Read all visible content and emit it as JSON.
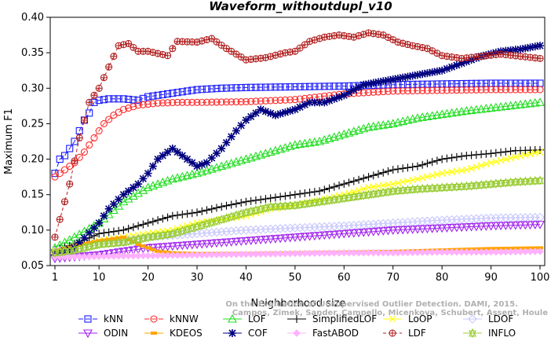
{
  "chart_data": {
    "type": "line",
    "title": "Waveform_withoutdupl_v10",
    "xlabel": "Neighborhood size",
    "ylabel": "Maximum F1",
    "xlim": [
      1,
      100
    ],
    "ylim": [
      0.05,
      0.4
    ],
    "xticks": [
      "1",
      "10",
      "20",
      "30",
      "40",
      "50",
      "60",
      "70",
      "80",
      "90",
      "100"
    ],
    "yticks": [
      "0.05",
      "0.10",
      "0.15",
      "0.20",
      "0.25",
      "0.30",
      "0.35",
      "0.40"
    ],
    "watermark": [
      "Campos, Zimek, Sander, Campello, Micenkova, Schubert, Assent, Houle",
      "On the Evaluation of Unsupervised Outlier Detection. DAMI, 2015."
    ],
    "series": [
      {
        "name": "kNN",
        "color": "#1a1aff",
        "marker": "square",
        "dash": "6,3",
        "points": [
          [
            1,
            0.18
          ],
          [
            2,
            0.2
          ],
          [
            3,
            0.205
          ],
          [
            4,
            0.215
          ],
          [
            5,
            0.225
          ],
          [
            6,
            0.24
          ],
          [
            7,
            0.255
          ],
          [
            8,
            0.265
          ],
          [
            9,
            0.28
          ],
          [
            10,
            0.283
          ],
          [
            12,
            0.285
          ],
          [
            15,
            0.285
          ],
          [
            18,
            0.283
          ],
          [
            20,
            0.288
          ],
          [
            25,
            0.293
          ],
          [
            30,
            0.298
          ],
          [
            35,
            0.3
          ],
          [
            40,
            0.301
          ],
          [
            50,
            0.302
          ],
          [
            60,
            0.303
          ],
          [
            70,
            0.305
          ],
          [
            80,
            0.306
          ],
          [
            90,
            0.307
          ],
          [
            100,
            0.307
          ]
        ]
      },
      {
        "name": "kNNW",
        "color": "#ff2a2a",
        "marker": "circle",
        "dash": "6,3",
        "points": [
          [
            1,
            0.175
          ],
          [
            3,
            0.185
          ],
          [
            5,
            0.195
          ],
          [
            7,
            0.21
          ],
          [
            9,
            0.23
          ],
          [
            11,
            0.25
          ],
          [
            13,
            0.262
          ],
          [
            15,
            0.27
          ],
          [
            18,
            0.276
          ],
          [
            22,
            0.279
          ],
          [
            26,
            0.28
          ],
          [
            30,
            0.28
          ],
          [
            40,
            0.281
          ],
          [
            50,
            0.284
          ],
          [
            60,
            0.292
          ],
          [
            70,
            0.296
          ],
          [
            80,
            0.297
          ],
          [
            90,
            0.298
          ],
          [
            100,
            0.298
          ]
        ]
      },
      {
        "name": "LOF",
        "color": "#22dd22",
        "marker": "triangle",
        "dash": "",
        "points": [
          [
            1,
            0.075
          ],
          [
            5,
            0.09
          ],
          [
            10,
            0.11
          ],
          [
            15,
            0.14
          ],
          [
            20,
            0.16
          ],
          [
            25,
            0.172
          ],
          [
            30,
            0.18
          ],
          [
            35,
            0.19
          ],
          [
            40,
            0.2
          ],
          [
            45,
            0.21
          ],
          [
            50,
            0.22
          ],
          [
            55,
            0.225
          ],
          [
            60,
            0.235
          ],
          [
            65,
            0.245
          ],
          [
            70,
            0.25
          ],
          [
            75,
            0.258
          ],
          [
            80,
            0.263
          ],
          [
            85,
            0.268
          ],
          [
            90,
            0.272
          ],
          [
            95,
            0.276
          ],
          [
            100,
            0.28
          ]
        ]
      },
      {
        "name": "SimplifiedLOF",
        "color": "#000000",
        "marker": "plus",
        "dash": "",
        "points": [
          [
            1,
            0.072
          ],
          [
            5,
            0.08
          ],
          [
            10,
            0.095
          ],
          [
            15,
            0.1
          ],
          [
            20,
            0.11
          ],
          [
            25,
            0.12
          ],
          [
            30,
            0.125
          ],
          [
            35,
            0.133
          ],
          [
            40,
            0.14
          ],
          [
            45,
            0.145
          ],
          [
            50,
            0.15
          ],
          [
            55,
            0.155
          ],
          [
            60,
            0.165
          ],
          [
            65,
            0.175
          ],
          [
            70,
            0.185
          ],
          [
            75,
            0.19
          ],
          [
            80,
            0.2
          ],
          [
            85,
            0.205
          ],
          [
            90,
            0.208
          ],
          [
            95,
            0.212
          ],
          [
            100,
            0.213
          ]
        ]
      },
      {
        "name": "LoOP",
        "color": "#ffff00",
        "marker": "x",
        "dash": "",
        "points": [
          [
            1,
            0.07
          ],
          [
            5,
            0.075
          ],
          [
            10,
            0.085
          ],
          [
            15,
            0.09
          ],
          [
            20,
            0.095
          ],
          [
            25,
            0.1
          ],
          [
            30,
            0.11
          ],
          [
            35,
            0.115
          ],
          [
            40,
            0.12
          ],
          [
            45,
            0.13
          ],
          [
            50,
            0.135
          ],
          [
            55,
            0.142
          ],
          [
            60,
            0.15
          ],
          [
            65,
            0.16
          ],
          [
            70,
            0.165
          ],
          [
            75,
            0.172
          ],
          [
            80,
            0.18
          ],
          [
            85,
            0.185
          ],
          [
            90,
            0.195
          ],
          [
            95,
            0.203
          ],
          [
            100,
            0.21
          ]
        ]
      },
      {
        "name": "LDOF",
        "color": "#c8c8ff",
        "marker": "diamond",
        "dash": "",
        "points": [
          [
            1,
            0.07
          ],
          [
            5,
            0.072
          ],
          [
            10,
            0.08
          ],
          [
            15,
            0.085
          ],
          [
            20,
            0.09
          ],
          [
            30,
            0.095
          ],
          [
            40,
            0.1
          ],
          [
            50,
            0.103
          ],
          [
            60,
            0.106
          ],
          [
            70,
            0.11
          ],
          [
            80,
            0.114
          ],
          [
            90,
            0.117
          ],
          [
            100,
            0.118
          ]
        ]
      },
      {
        "name": "ODIN",
        "color": "#a020f0",
        "marker": "tridown",
        "dash": "",
        "points": [
          [
            1,
            0.06
          ],
          [
            10,
            0.065
          ],
          [
            20,
            0.075
          ],
          [
            30,
            0.08
          ],
          [
            40,
            0.085
          ],
          [
            50,
            0.09
          ],
          [
            60,
            0.095
          ],
          [
            70,
            0.1
          ],
          [
            80,
            0.103
          ],
          [
            90,
            0.106
          ],
          [
            100,
            0.108
          ]
        ]
      },
      {
        "name": "KDEOS",
        "color": "#ffa500",
        "marker": "fsquare",
        "dash": "",
        "points": [
          [
            1,
            0.07
          ],
          [
            5,
            0.078
          ],
          [
            10,
            0.085
          ],
          [
            15,
            0.09
          ],
          [
            18,
            0.08
          ],
          [
            22,
            0.07
          ],
          [
            25,
            0.068
          ],
          [
            30,
            0.067
          ],
          [
            40,
            0.067
          ],
          [
            50,
            0.068
          ],
          [
            60,
            0.069
          ],
          [
            70,
            0.07
          ],
          [
            80,
            0.072
          ],
          [
            90,
            0.074
          ],
          [
            100,
            0.075
          ]
        ]
      },
      {
        "name": "COF",
        "color": "#000080",
        "marker": "star",
        "dash": "",
        "points": [
          [
            1,
            0.065
          ],
          [
            5,
            0.075
          ],
          [
            10,
            0.11
          ],
          [
            12,
            0.13
          ],
          [
            15,
            0.15
          ],
          [
            18,
            0.165
          ],
          [
            20,
            0.18
          ],
          [
            22,
            0.2
          ],
          [
            25,
            0.215
          ],
          [
            28,
            0.2
          ],
          [
            30,
            0.19
          ],
          [
            32,
            0.195
          ],
          [
            35,
            0.215
          ],
          [
            38,
            0.24
          ],
          [
            40,
            0.255
          ],
          [
            43,
            0.27
          ],
          [
            46,
            0.262
          ],
          [
            50,
            0.27
          ],
          [
            53,
            0.28
          ],
          [
            56,
            0.28
          ],
          [
            60,
            0.29
          ],
          [
            64,
            0.305
          ],
          [
            68,
            0.31
          ],
          [
            72,
            0.315
          ],
          [
            76,
            0.32
          ],
          [
            80,
            0.325
          ],
          [
            84,
            0.335
          ],
          [
            88,
            0.345
          ],
          [
            92,
            0.352
          ],
          [
            96,
            0.355
          ],
          [
            100,
            0.36
          ]
        ]
      },
      {
        "name": "FastABOD",
        "color": "#ffb0ff",
        "marker": "fdiamond",
        "dash": "",
        "points": [
          [
            1,
            0.062
          ],
          [
            10,
            0.063
          ],
          [
            20,
            0.064
          ],
          [
            30,
            0.065
          ],
          [
            40,
            0.066
          ],
          [
            50,
            0.067
          ],
          [
            60,
            0.068
          ],
          [
            70,
            0.068
          ],
          [
            80,
            0.069
          ],
          [
            90,
            0.069
          ],
          [
            100,
            0.07
          ]
        ]
      },
      {
        "name": "LDF",
        "color": "#b22222",
        "marker": "circleplus",
        "dash": "4,3",
        "points": [
          [
            1,
            0.09
          ],
          [
            2,
            0.115
          ],
          [
            4,
            0.165
          ],
          [
            6,
            0.23
          ],
          [
            8,
            0.28
          ],
          [
            10,
            0.3
          ],
          [
            12,
            0.33
          ],
          [
            14,
            0.36
          ],
          [
            16,
            0.363
          ],
          [
            18,
            0.352
          ],
          [
            20,
            0.352
          ],
          [
            24,
            0.346
          ],
          [
            26,
            0.366
          ],
          [
            30,
            0.365
          ],
          [
            33,
            0.37
          ],
          [
            36,
            0.356
          ],
          [
            40,
            0.34
          ],
          [
            44,
            0.343
          ],
          [
            48,
            0.35
          ],
          [
            50,
            0.352
          ],
          [
            53,
            0.366
          ],
          [
            56,
            0.372
          ],
          [
            59,
            0.375
          ],
          [
            62,
            0.372
          ],
          [
            65,
            0.378
          ],
          [
            68,
            0.375
          ],
          [
            71,
            0.365
          ],
          [
            74,
            0.36
          ],
          [
            77,
            0.356
          ],
          [
            80,
            0.346
          ],
          [
            84,
            0.342
          ],
          [
            88,
            0.345
          ],
          [
            92,
            0.348
          ],
          [
            96,
            0.345
          ],
          [
            100,
            0.342
          ]
        ]
      },
      {
        "name": "INFLO",
        "color": "#99cc33",
        "marker": "star2",
        "dash": "",
        "points": [
          [
            1,
            0.068
          ],
          [
            5,
            0.072
          ],
          [
            10,
            0.08
          ],
          [
            15,
            0.083
          ],
          [
            20,
            0.09
          ],
          [
            25,
            0.095
          ],
          [
            30,
            0.105
          ],
          [
            35,
            0.115
          ],
          [
            40,
            0.125
          ],
          [
            45,
            0.133
          ],
          [
            50,
            0.135
          ],
          [
            55,
            0.14
          ],
          [
            60,
            0.145
          ],
          [
            65,
            0.15
          ],
          [
            70,
            0.155
          ],
          [
            75,
            0.158
          ],
          [
            80,
            0.16
          ],
          [
            85,
            0.162
          ],
          [
            90,
            0.165
          ],
          [
            95,
            0.168
          ],
          [
            100,
            0.17
          ]
        ]
      }
    ],
    "legend": [
      [
        "kNN",
        "kNNW",
        "LOF",
        "SimplifiedLOF",
        "LoOP",
        "LDOF"
      ],
      [
        "ODIN",
        "KDEOS",
        "COF",
        "FastABOD",
        "LDF",
        "INFLO"
      ]
    ]
  }
}
